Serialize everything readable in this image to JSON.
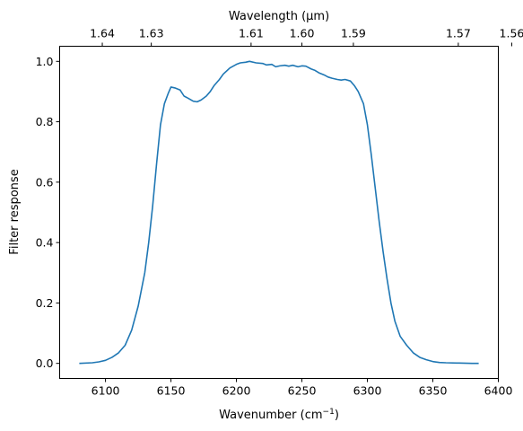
{
  "chart_data": {
    "type": "line",
    "title": "",
    "xlabel": "Wavenumber (cm",
    "xlabel_superscript": "−1",
    "xlabel_close": ")",
    "ylabel": "Filter response",
    "x2label": "Wavelength (μm)",
    "xlim": [
      6065,
      6400
    ],
    "ylim": [
      -0.05,
      1.05
    ],
    "grid": false,
    "legend": "none",
    "x_ticks": [
      6100,
      6150,
      6200,
      6250,
      6300,
      6350,
      6400
    ],
    "y_ticks": [
      0.0,
      0.2,
      0.4,
      0.6,
      0.8,
      1.0
    ],
    "y_tick_labels": [
      "0.0",
      "0.2",
      "0.4",
      "0.6",
      "0.8",
      "1.0"
    ],
    "x2_ticks": [
      1.64,
      1.63,
      1.61,
      1.6,
      1.59,
      1.57,
      1.56
    ],
    "x2_tick_labels": [
      "1.64",
      "1.63",
      "1.61",
      "1.60",
      "1.59",
      "1.57",
      "1.56"
    ],
    "series": [
      {
        "color": "#1f77b4",
        "x": [
          6080,
          6090,
          6095,
          6100,
          6105,
          6110,
          6115,
          6120,
          6125,
          6130,
          6133,
          6136,
          6139,
          6142,
          6145,
          6148,
          6150,
          6153,
          6157,
          6160,
          6163,
          6167,
          6170,
          6173,
          6177,
          6180,
          6183,
          6187,
          6190,
          6195,
          6200,
          6203,
          6207,
          6210,
          6215,
          6220,
          6223,
          6227,
          6230,
          6233,
          6237,
          6240,
          6243,
          6247,
          6250,
          6253,
          6257,
          6260,
          6263,
          6267,
          6270,
          6273,
          6277,
          6280,
          6283,
          6287,
          6290,
          6293,
          6297,
          6300,
          6303,
          6306,
          6309,
          6312,
          6315,
          6318,
          6321,
          6325,
          6330,
          6335,
          6340,
          6345,
          6350,
          6355,
          6360,
          6370,
          6380,
          6385
        ],
        "y": [
          0.0,
          0.002,
          0.005,
          0.01,
          0.02,
          0.035,
          0.06,
          0.11,
          0.19,
          0.3,
          0.4,
          0.52,
          0.66,
          0.79,
          0.86,
          0.895,
          0.915,
          0.912,
          0.905,
          0.885,
          0.878,
          0.868,
          0.866,
          0.872,
          0.885,
          0.9,
          0.92,
          0.94,
          0.958,
          0.978,
          0.99,
          0.995,
          0.997,
          1.0,
          0.995,
          0.993,
          0.988,
          0.99,
          0.982,
          0.985,
          0.987,
          0.984,
          0.987,
          0.982,
          0.985,
          0.984,
          0.975,
          0.97,
          0.962,
          0.955,
          0.948,
          0.944,
          0.94,
          0.938,
          0.94,
          0.935,
          0.92,
          0.9,
          0.86,
          0.79,
          0.69,
          0.58,
          0.47,
          0.37,
          0.28,
          0.2,
          0.14,
          0.09,
          0.06,
          0.035,
          0.02,
          0.012,
          0.006,
          0.003,
          0.002,
          0.001,
          0.0,
          0.0
        ]
      }
    ]
  }
}
